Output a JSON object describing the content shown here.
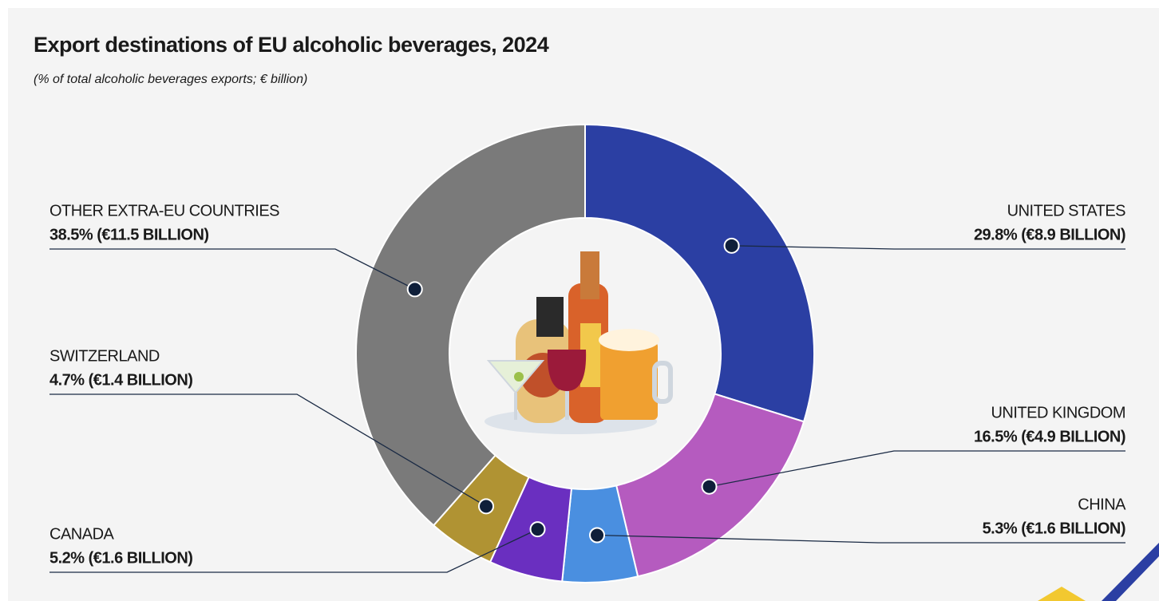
{
  "chart_data": {
    "type": "donut",
    "title": "Export destinations of EU alcoholic beverages, 2024",
    "subtitle": "(% of total alcoholic beverages exports; € billion)",
    "categories": [
      "UNITED STATES",
      "UNITED KINGDOM",
      "CHINA",
      "CANADA",
      "SWITZERLAND",
      "OTHER EXTRA-EU COUNTRIES"
    ],
    "values": [
      29.8,
      16.5,
      5.3,
      5.2,
      4.7,
      38.5
    ],
    "value_labels": [
      "29.8% (€8.9 BILLION)",
      "16.5% (€4.9 BILLION)",
      "5.3% (€1.6 BILLION)",
      "5.2% (€1.6 BILLION)",
      "4.7% (€1.4 BILLION)",
      "38.5% (€11.5 BILLION)"
    ],
    "colors": [
      "#2b3fa3",
      "#b55bbf",
      "#4a8fe0",
      "#6a2fc0",
      "#b09333",
      "#7a7a7a"
    ]
  }
}
